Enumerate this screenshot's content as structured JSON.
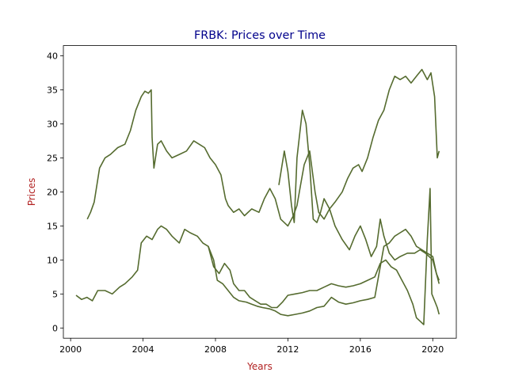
{
  "chart_data": {
    "type": "line",
    "title": "FRBK: Prices over Time",
    "xlabel": "Years",
    "ylabel": "Prices",
    "xlim": [
      1999.6,
      2021.3
    ],
    "ylim": [
      -1.5,
      41.5
    ],
    "x_ticks": [
      "2000",
      "2004",
      "2008",
      "2012",
      "2016",
      "2020"
    ],
    "x_tick_values": [
      2000,
      2004,
      2008,
      2012,
      2016,
      2020
    ],
    "y_ticks": [
      "0",
      "5",
      "10",
      "15",
      "20",
      "25",
      "30",
      "35",
      "40"
    ],
    "y_tick_values": [
      0,
      5,
      10,
      15,
      20,
      25,
      30,
      35,
      40
    ],
    "grid": false,
    "colors": {
      "line": "#556b2f",
      "title": "#00008b",
      "axis_label": "#b22222"
    },
    "series": [
      {
        "x": [
          2000.92,
          2001.1,
          2001.3,
          2001.6,
          2001.9,
          2002.2,
          2002.6,
          2003.0,
          2003.3,
          2003.6,
          2003.9,
          2004.1,
          2004.3,
          2004.45,
          2004.5,
          2004.6,
          2004.8,
          2005.0,
          2005.3,
          2005.6,
          2006.0,
          2006.4,
          2006.8,
          2007.1,
          2007.4,
          2007.7,
          2008.0,
          2008.3,
          2008.55,
          2008.7,
          2009.0,
          2009.3,
          2009.6,
          2010.0,
          2010.4,
          2010.7,
          2011.0,
          2011.3,
          2011.6,
          2012.0,
          2012.3,
          2012.5,
          2012.7,
          2012.9,
          2013.2,
          2013.5,
          2013.7,
          2014.0,
          2014.3,
          2014.6,
          2015.0,
          2015.3,
          2015.6,
          2015.9,
          2016.1,
          2016.4,
          2016.7,
          2017.0,
          2017.3,
          2017.6,
          2017.9,
          2018.2,
          2018.5,
          2018.8,
          2019.1,
          2019.4,
          2019.7,
          2019.9,
          2020.1,
          2020.25,
          2020.35
        ],
        "values": [
          16.0,
          17.0,
          18.5,
          23.5,
          25.0,
          25.5,
          26.5,
          27.0,
          29.0,
          32.0,
          34.0,
          34.8,
          34.5,
          35.0,
          28.0,
          23.5,
          27.0,
          27.5,
          26.0,
          25.0,
          25.5,
          26.0,
          27.5,
          27.0,
          26.5,
          25.0,
          24.0,
          22.5,
          19.0,
          18.0,
          17.0,
          17.5,
          16.5,
          17.5,
          17.0,
          19.0,
          20.5,
          19.0,
          16.0,
          15.0,
          16.5,
          18.0,
          21.0,
          24.0,
          26.0,
          20.0,
          17.0,
          16.0,
          17.5,
          18.5,
          20.0,
          22.0,
          23.5,
          24.0,
          23.0,
          25.0,
          28.0,
          30.5,
          32.0,
          35.0,
          37.0,
          36.5,
          37.0,
          36.0,
          37.0,
          38.0,
          36.5,
          37.5,
          34.0,
          25.0,
          26.0
        ]
      },
      {
        "x": [
          2011.5,
          2011.8,
          2012.0,
          2012.2,
          2012.35,
          2012.5,
          2012.8,
          2013.0,
          2013.2,
          2013.4,
          2013.6,
          2013.8,
          2014.0,
          2014.3,
          2014.6,
          2015.0,
          2015.4,
          2015.7,
          2016.0,
          2016.3,
          2016.6,
          2016.9,
          2017.1,
          2017.3,
          2017.6,
          2017.9,
          2018.2,
          2018.6,
          2019.0,
          2019.3,
          2019.6,
          2019.8,
          2020.0,
          2020.2,
          2020.35
        ],
        "values": [
          21.0,
          26.0,
          23.0,
          18.0,
          15.5,
          25.0,
          32.0,
          30.0,
          24.0,
          16.0,
          15.5,
          17.0,
          19.0,
          17.5,
          15.0,
          13.0,
          11.5,
          13.5,
          15.0,
          13.0,
          10.5,
          12.0,
          16.0,
          13.5,
          11.0,
          10.0,
          10.5,
          11.0,
          11.0,
          11.5,
          11.0,
          10.5,
          10.0,
          8.0,
          7.0
        ]
      },
      {
        "x": [
          2000.3,
          2000.6,
          2000.9,
          2001.2,
          2001.5,
          2001.9,
          2002.3,
          2002.7,
          2003.0,
          2003.4,
          2003.7,
          2003.9,
          2004.2,
          2004.5,
          2004.8,
          2005.0,
          2005.3,
          2005.6,
          2006.0,
          2006.3,
          2006.6,
          2007.0,
          2007.3,
          2007.6,
          2007.9,
          2008.1,
          2008.4,
          2008.7,
          2009.0,
          2009.3,
          2009.7,
          2010.0,
          2010.3,
          2010.6,
          2011.0,
          2011.3,
          2011.6,
          2012.0,
          2012.4,
          2012.8,
          2013.2,
          2013.6,
          2014.0,
          2014.4,
          2014.8,
          2015.2,
          2015.6,
          2016.0,
          2016.4,
          2016.8,
          2017.0,
          2017.3,
          2017.6,
          2017.9,
          2018.2,
          2018.5,
          2018.8,
          2019.1,
          2019.4,
          2019.7,
          2020.0,
          2020.2,
          2020.35
        ],
        "values": [
          4.8,
          4.2,
          4.5,
          4.0,
          5.5,
          5.5,
          5.0,
          6.0,
          6.5,
          7.5,
          8.5,
          12.5,
          13.5,
          13.0,
          14.5,
          15.0,
          14.5,
          13.5,
          12.5,
          14.5,
          14.0,
          13.5,
          12.5,
          12.0,
          10.0,
          7.0,
          6.5,
          5.5,
          4.5,
          4.0,
          3.8,
          3.5,
          3.2,
          3.0,
          2.8,
          2.5,
          2.0,
          1.8,
          2.0,
          2.2,
          2.5,
          3.0,
          3.2,
          4.5,
          3.8,
          3.5,
          3.7,
          4.0,
          4.2,
          4.5,
          7.5,
          12.0,
          12.5,
          13.5,
          14.0,
          14.5,
          13.5,
          12.0,
          11.5,
          11.0,
          10.5,
          8.0,
          6.5
        ]
      },
      {
        "x": [
          2007.6,
          2007.9,
          2008.2,
          2008.5,
          2008.8,
          2009.0,
          2009.3,
          2009.6,
          2009.9,
          2010.2,
          2010.5,
          2010.8,
          2011.1,
          2011.4,
          2011.7,
          2012.0,
          2012.4,
          2012.8,
          2013.2,
          2013.6,
          2014.0,
          2014.4,
          2014.8,
          2015.2,
          2015.6,
          2016.0,
          2016.4,
          2016.8,
          2017.1,
          2017.4,
          2017.7,
          2018.0,
          2018.3,
          2018.6,
          2018.9,
          2019.1,
          2019.3,
          2019.5,
          2019.7,
          2019.85,
          2019.95,
          2020.1,
          2020.25,
          2020.35
        ],
        "values": [
          12.0,
          9.0,
          8.0,
          9.5,
          8.5,
          6.5,
          5.5,
          5.5,
          4.5,
          4.0,
          3.5,
          3.5,
          3.0,
          3.0,
          3.8,
          4.8,
          5.0,
          5.2,
          5.5,
          5.5,
          6.0,
          6.5,
          6.2,
          6.0,
          6.2,
          6.5,
          7.0,
          7.5,
          9.5,
          10.0,
          9.0,
          8.5,
          7.0,
          5.5,
          3.5,
          1.5,
          1.0,
          0.5,
          13.0,
          20.5,
          5.0,
          4.0,
          3.0,
          2.0
        ]
      }
    ]
  }
}
